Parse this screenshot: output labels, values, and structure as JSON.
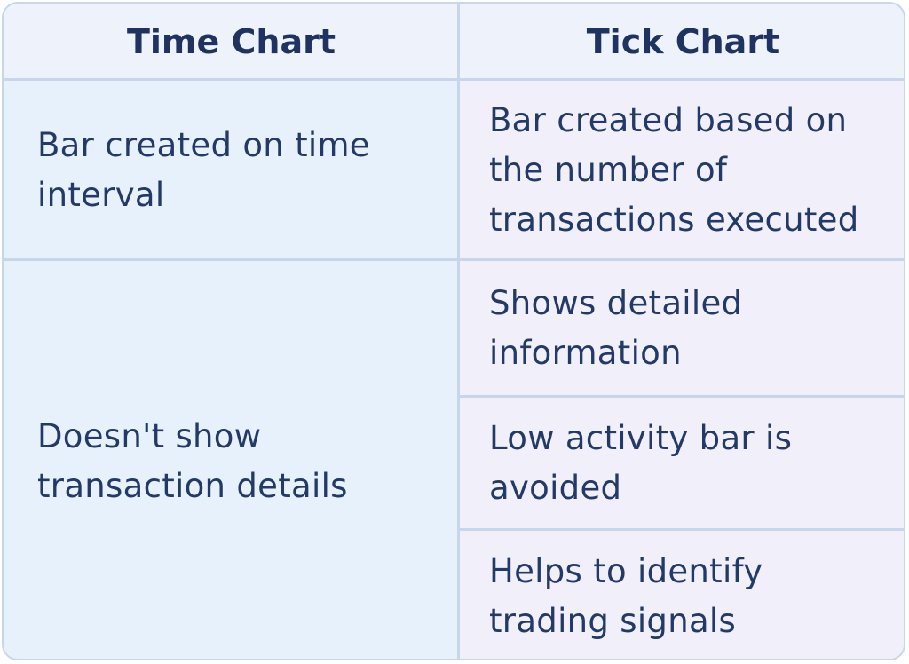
{
  "columns": {
    "left_header": "Time Chart",
    "right_header": "Tick Chart"
  },
  "rows": {
    "r1_left": "Bar created on time interval",
    "r1_right": "Bar created based on the number of transactions executed",
    "r2_left": "Doesn't show transaction details",
    "r2_right_a": "Shows detailed information",
    "r2_right_b": "Low activity bar is avoided",
    "r2_right_c": "Helps to identify trading signals"
  },
  "colors": {
    "border": "#c7d6ea",
    "header_bg": "#eef3fb",
    "left_col_bg": "#e7f1fb",
    "right_col_bg": "#f1f0fa",
    "text": "#243a66"
  }
}
